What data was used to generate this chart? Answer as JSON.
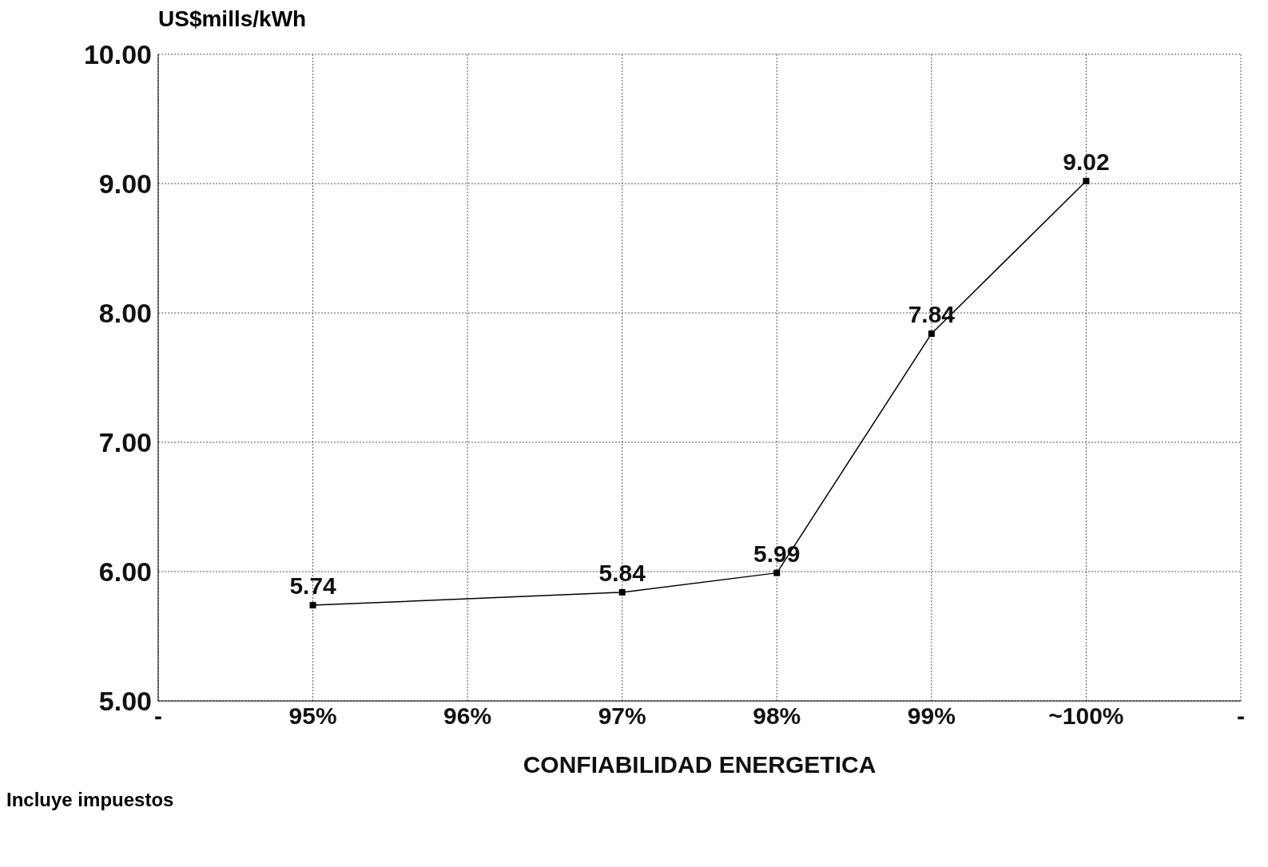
{
  "chart_data": {
    "type": "line",
    "xlabel": "CONFIABILIDAD ENERGETICA",
    "ylabel": "US$mills/kWh",
    "annotations": [
      "Incluye impuestos"
    ],
    "x": [
      95,
      97,
      98,
      99,
      100
    ],
    "series": [
      {
        "color": "#000000",
        "values": [
          5.74,
          5.84,
          5.99,
          7.84,
          9.02
        ]
      }
    ],
    "xlim": [
      94,
      101
    ],
    "xticks": [
      {
        "value": 94,
        "label": "-"
      },
      {
        "value": 95,
        "label": "95%"
      },
      {
        "value": 96,
        "label": "96%"
      },
      {
        "value": 97,
        "label": "97%"
      },
      {
        "value": 98,
        "label": "98%"
      },
      {
        "value": 99,
        "label": "99%"
      },
      {
        "value": 100,
        "label": "~100%"
      },
      {
        "value": 101,
        "label": "-"
      }
    ],
    "ylim": [
      5,
      10
    ],
    "yticks": [
      {
        "value": 5,
        "label": "5.00"
      },
      {
        "value": 6,
        "label": "6.00"
      },
      {
        "value": 7,
        "label": "7.00"
      },
      {
        "value": 8,
        "label": "8.00"
      },
      {
        "value": 9,
        "label": "9.00"
      },
      {
        "value": 10,
        "label": "10.00"
      }
    ],
    "grid": true,
    "marker": "square",
    "line_style": "solid",
    "data_labels": true
  }
}
